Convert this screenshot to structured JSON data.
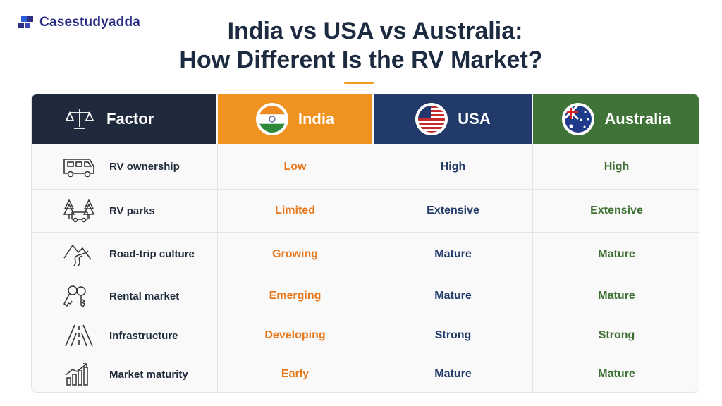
{
  "brand": {
    "name": "Casestudyadda",
    "color": "#2b2f86"
  },
  "title": {
    "line1": "India vs USA vs Australia:",
    "line2": "How Different Is the RV Market?"
  },
  "headers": {
    "factor": "Factor",
    "india": "India",
    "usa": "USA",
    "australia": "Australia",
    "icons": [
      "scales-icon",
      "india-flag-icon",
      "usa-flag-icon",
      "australia-flag-icon"
    ]
  },
  "colors": {
    "factor_header": "#1f2a3c",
    "india_header": "#f0921f",
    "usa_header": "#213a69",
    "australia_header": "#3f7337",
    "india_text": "#e8781c",
    "usa_text": "#223b6b",
    "australia_text": "#3e7033"
  },
  "rows": [
    {
      "icon": "rv-icon",
      "factor": "RV ownership",
      "india": "Low",
      "usa": "High",
      "australia": "High"
    },
    {
      "icon": "rv-park-icon",
      "factor": "RV parks",
      "india": "Limited",
      "usa": "Extensive",
      "australia": "Extensive"
    },
    {
      "icon": "mountain-road-icon",
      "factor": "Road-trip culture",
      "india": "Growing",
      "usa": "Mature",
      "australia": "Mature"
    },
    {
      "icon": "keys-icon",
      "factor": "Rental market",
      "india": "Emerging",
      "usa": "Mature",
      "australia": "Mature"
    },
    {
      "icon": "highway-icon",
      "factor": "Infrastructure",
      "india": "Developing",
      "usa": "Strong",
      "australia": "Strong"
    },
    {
      "icon": "growth-chart-icon",
      "factor": "Market maturity",
      "india": "Early",
      "usa": "Mature",
      "australia": "Mature"
    }
  ]
}
